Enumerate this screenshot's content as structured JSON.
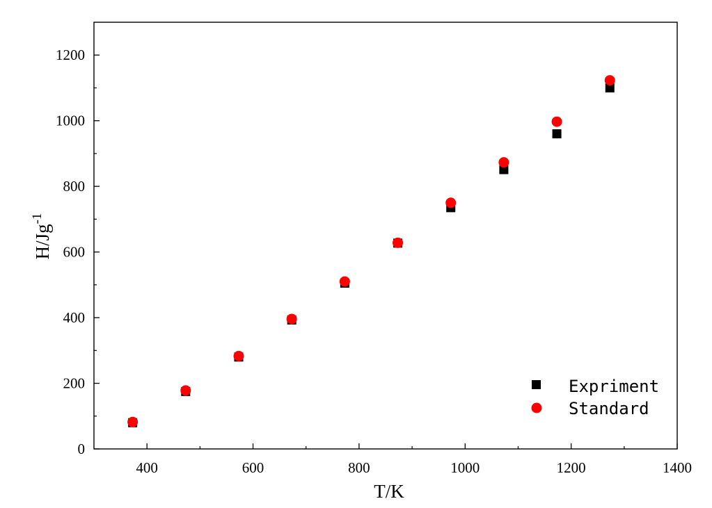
{
  "chart_data": {
    "type": "scatter",
    "title": "",
    "xlabel": "T/K",
    "ylabel_main": "H/Jg",
    "ylabel_sup": "-1",
    "xlim": [
      300,
      1400
    ],
    "ylim": [
      0,
      1300
    ],
    "x_ticks": [
      400,
      600,
      800,
      1000,
      1200,
      1400
    ],
    "x_tick_labels": [
      "400",
      "600",
      "800",
      "1000",
      "1200",
      "1400"
    ],
    "x_minor_ticks": [
      500,
      700,
      900,
      1100,
      1300
    ],
    "y_ticks": [
      0,
      200,
      400,
      600,
      800,
      1000,
      1200
    ],
    "y_tick_labels": [
      "0",
      "200",
      "400",
      "600",
      "800",
      "1000",
      "1200"
    ],
    "y_minor_ticks": [
      100,
      300,
      500,
      700,
      900,
      1100
    ],
    "grid": false,
    "legend_position": "bottom-right",
    "series": [
      {
        "name": "Expriment",
        "marker": "square",
        "color": "#000000",
        "x": [
          373,
          473,
          573,
          673,
          773,
          873,
          973,
          1073,
          1173,
          1273
        ],
        "y": [
          80,
          175,
          280,
          393,
          505,
          627,
          735,
          851,
          960,
          1100
        ]
      },
      {
        "name": "Standard",
        "marker": "circle",
        "color": "#ff0000",
        "x": [
          373,
          473,
          573,
          673,
          773,
          873,
          973,
          1073,
          1173,
          1273
        ],
        "y": [
          82,
          178,
          283,
          396,
          510,
          628,
          750,
          873,
          997,
          1123
        ]
      }
    ]
  }
}
